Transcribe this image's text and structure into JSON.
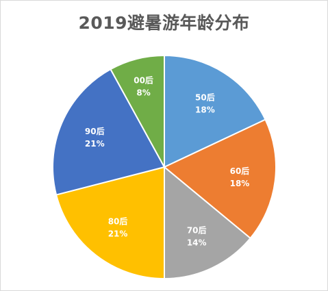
{
  "chart_data": {
    "type": "pie",
    "title": "2019避暑游年龄分布",
    "start_angle_deg": 0,
    "direction": "clockwise",
    "slices": [
      {
        "label": "50后",
        "value": 18,
        "value_label": "18%",
        "color": "#5B9BD5"
      },
      {
        "label": "60后",
        "value": 18,
        "value_label": "18%",
        "color": "#ED7D31"
      },
      {
        "label": "70后",
        "value": 14,
        "value_label": "14%",
        "color": "#A5A5A5"
      },
      {
        "label": "80后",
        "value": 21,
        "value_label": "21%",
        "color": "#FFC000"
      },
      {
        "label": "90后",
        "value": 21,
        "value_label": "21%",
        "color": "#4472C4"
      },
      {
        "label": "00后",
        "value": 8,
        "value_label": "8%",
        "color": "#70AD47"
      }
    ]
  }
}
